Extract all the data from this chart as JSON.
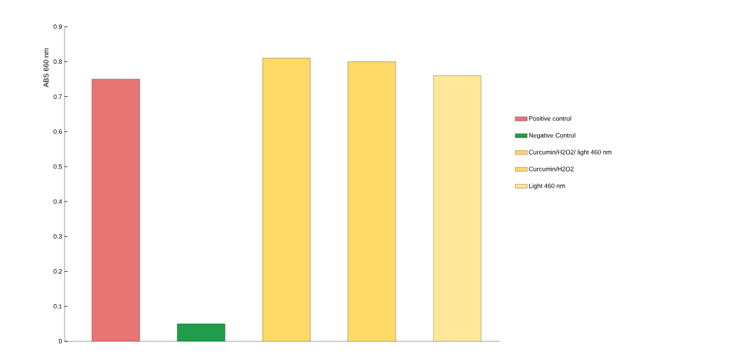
{
  "chart_data": {
    "type": "bar",
    "ylabel": "ABS 660 nm",
    "categories": [
      null,
      null,
      null,
      null,
      null
    ],
    "series": [
      {
        "name": "Positive control",
        "color": "#e87474",
        "values": [
          0.75,
          null,
          null,
          null,
          null
        ]
      },
      {
        "name": "Negative Control",
        "color": "#1f9e4a",
        "values": [
          null,
          0.05,
          null,
          null,
          null
        ]
      },
      {
        "name": "Curcumin/H2O2/ light 460 nm",
        "color": "#ffd966",
        "values": [
          null,
          null,
          0.81,
          null,
          null
        ]
      },
      {
        "name": "Curcumin/H2O2",
        "color": "#ffd966",
        "values": [
          null,
          null,
          null,
          0.8,
          null
        ]
      },
      {
        "name": "Light 460 nm",
        "color": "#ffe699",
        "values": [
          null,
          null,
          null,
          null,
          0.76
        ]
      }
    ],
    "ylim": [
      0,
      0.9
    ],
    "yticks": [
      0,
      0.1,
      0.2,
      0.3,
      0.4,
      0.5,
      0.6,
      0.7,
      0.8,
      0.9
    ],
    "grid": false,
    "legend": "right",
    "tick_labels": "y"
  }
}
